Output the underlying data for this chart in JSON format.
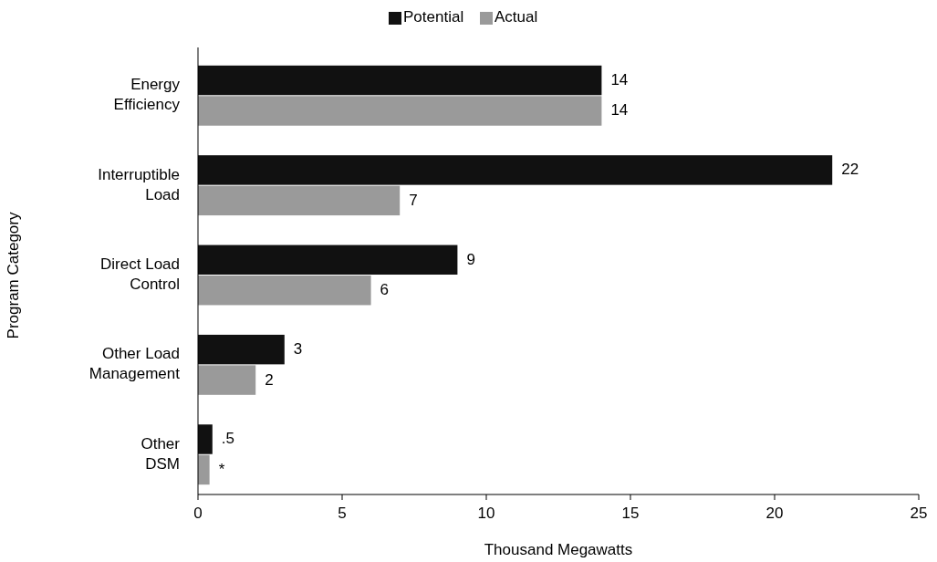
{
  "chart_data": {
    "type": "bar",
    "orientation": "horizontal",
    "xlabel": "Thousand Megawatts",
    "ylabel": "Program Category",
    "categories": [
      "Energy\nEfficiency",
      "Interruptible\nLoad",
      "Direct Load\nControl",
      "Other Load\nManagement",
      "Other\nDSM"
    ],
    "series": [
      {
        "name": "Potential",
        "color": "#111111",
        "values": [
          14,
          22,
          9,
          3,
          0.5
        ],
        "value_labels": [
          "14",
          "22",
          "9",
          "3",
          ".5"
        ]
      },
      {
        "name": "Actual",
        "color": "#9a9a9a",
        "values": [
          14,
          7,
          6,
          2,
          0.4
        ],
        "value_labels": [
          "14",
          "7",
          "6",
          "2",
          "*"
        ]
      }
    ],
    "xlim": [
      0,
      25
    ],
    "xticks": [
      0,
      5,
      10,
      15,
      20,
      25
    ],
    "legend": "top"
  }
}
